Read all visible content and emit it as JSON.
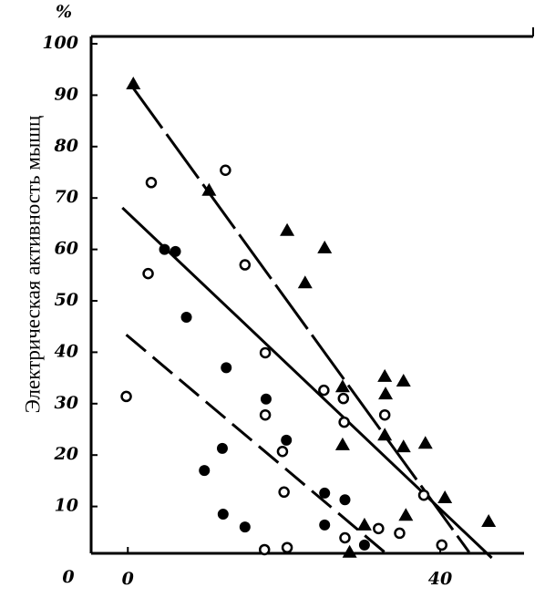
{
  "chart_data": {
    "type": "scatter",
    "y_label": "Электрическая активность мышц",
    "y_unit": "%",
    "xlim": [
      -4.7,
      51.9
    ],
    "ylim": [
      0,
      100
    ],
    "xticks": [
      0,
      40
    ],
    "yticks": [
      0,
      10,
      20,
      30,
      40,
      50,
      60,
      70,
      80,
      90,
      100
    ],
    "color": "#000000",
    "series": [
      {
        "marker": "open-circle",
        "x": [
          -0.2,
          3.0,
          2.6,
          12.5,
          15.0,
          17.6,
          17.6,
          20.0,
          19.8,
          17.5,
          20.4,
          25.1,
          27.6,
          27.7,
          32.9,
          32.1,
          34.8,
          37.9,
          40.2,
          27.8
        ],
        "values": [
          31.4,
          73,
          55.3,
          75.4,
          57,
          39.9,
          27.8,
          12.8,
          20.7,
          1.6,
          2,
          32.6,
          31,
          26.4,
          27.8,
          5.7,
          4.8,
          12.2,
          2.5,
          3.9
        ]
      },
      {
        "marker": "filled-circle",
        "x": [
          4.7,
          6.1,
          7.5,
          12.6,
          17.7,
          12.1,
          9.8,
          12.2,
          15.0,
          20.3,
          25.2,
          27.8,
          25.2,
          30.3
        ],
        "values": [
          60,
          59.6,
          46.8,
          37,
          30.9,
          21.3,
          17,
          8.5,
          6,
          22.9,
          12.6,
          11.3,
          6.4,
          2.5
        ]
      },
      {
        "marker": "triangle",
        "x": [
          0.7,
          10.4,
          20.4,
          25.2,
          22.7,
          27.5,
          27.5,
          32.9,
          35.3,
          33.0,
          32.9,
          35.3,
          38.1,
          40.6,
          46.2,
          30.3,
          35.6,
          28.4
        ],
        "values": [
          92.2,
          71.5,
          63.7,
          60.3,
          53.5,
          33.3,
          22,
          35.3,
          34.4,
          31.9,
          23.9,
          21.6,
          22.3,
          11.7,
          7.1,
          6.4,
          8.3,
          1.1
        ]
      }
    ],
    "lines": [
      {
        "x": [
          0.3,
          43.7
        ],
        "values": [
          92.2,
          1.1
        ],
        "dash": "60 8"
      },
      {
        "x": [
          -0.7,
          46.6
        ],
        "values": [
          68.1,
          0
        ],
        "dash": "none"
      },
      {
        "x": [
          -0.2,
          33.2
        ],
        "values": [
          43.4,
          0.7
        ],
        "dash": "28 10"
      }
    ]
  }
}
